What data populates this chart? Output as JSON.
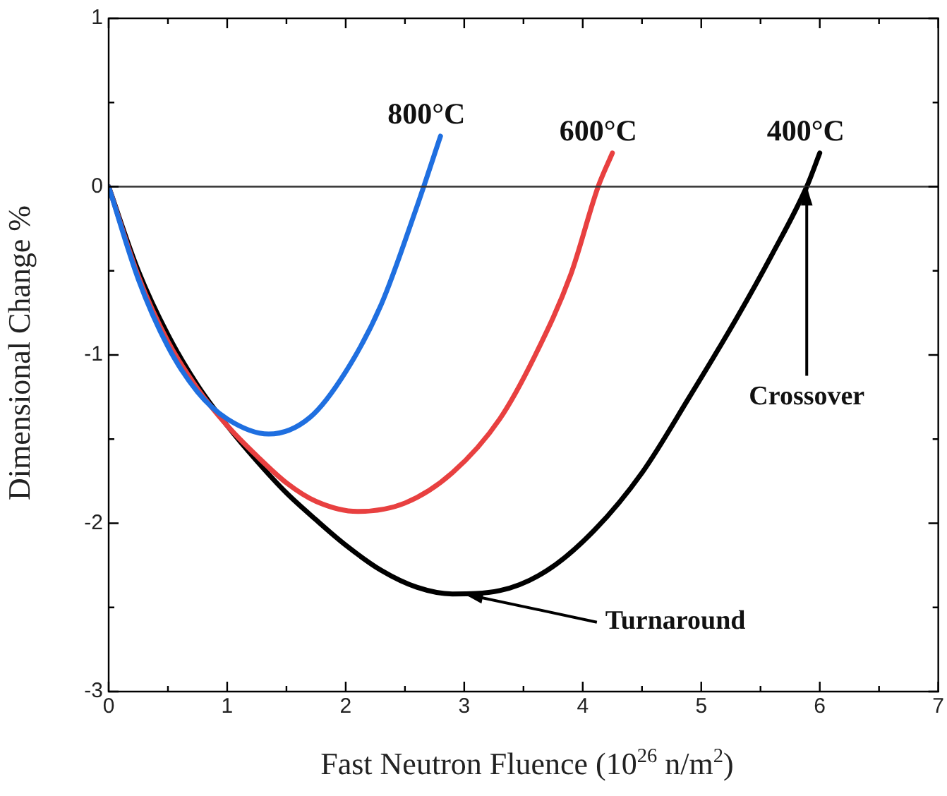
{
  "chart_data": {
    "type": "line",
    "xlabel": "Fast Neutron Fluence (10$^{26}$ n/m$^{2}$)",
    "ylabel": "Dimensional Change %",
    "xlim": [
      0,
      7
    ],
    "ylim": [
      -3,
      1
    ],
    "xticks": [
      0,
      {
        "value": 0.5,
        "label": null
      },
      1,
      {
        "value": 1.5,
        "label": null
      },
      2,
      {
        "value": 2.5,
        "label": null
      },
      3,
      {
        "value": 3.5,
        "label": null
      },
      4,
      {
        "value": 4.5,
        "label": null
      },
      5,
      {
        "value": 5.5,
        "label": null
      },
      6,
      {
        "value": 6.5,
        "label": null
      },
      7
    ],
    "yticks": [
      -3,
      {
        "value": -2.5,
        "label": null
      },
      -2,
      {
        "value": -1.5,
        "label": null
      },
      -1,
      {
        "value": -0.5,
        "label": null
      },
      0,
      {
        "value": 0.5,
        "label": null
      },
      1
    ],
    "grid": false,
    "legend": false,
    "marker": "none",
    "line_style": "solid",
    "ref_lines": [
      {
        "axis": "y",
        "value": 0,
        "color": "#333333"
      }
    ],
    "annotations": [
      {
        "text": "Crossover",
        "x": 5.89,
        "y": 0
      },
      {
        "text": "Turnaround",
        "x": 3.0,
        "y": -2.42
      }
    ],
    "series": [
      {
        "name": "800°C",
        "color": "#1f6fe0",
        "x": [
          0,
          0.25,
          0.5,
          0.75,
          1,
          1.35,
          1.7,
          2,
          2.3,
          2.6,
          2.8
        ],
        "values": [
          0,
          -0.55,
          -0.95,
          -1.22,
          -1.38,
          -1.47,
          -1.37,
          -1.1,
          -0.7,
          -0.12,
          0.3
        ]
      },
      {
        "name": "600°C",
        "color": "#e84040",
        "x": [
          0,
          0.25,
          0.5,
          0.75,
          1,
          1.25,
          1.5,
          1.75,
          2.1,
          2.5,
          2.9,
          3.3,
          3.6,
          3.9,
          4.13,
          4.25
        ],
        "values": [
          0,
          -0.53,
          -0.92,
          -1.2,
          -1.42,
          -1.6,
          -1.76,
          -1.87,
          -1.93,
          -1.88,
          -1.7,
          -1.38,
          -1.0,
          -0.52,
          0,
          0.2
        ]
      },
      {
        "name": "400°C",
        "color": "#000000",
        "x": [
          0,
          0.25,
          0.5,
          0.75,
          1,
          1.25,
          1.5,
          1.75,
          2,
          2.3,
          2.6,
          2.9,
          3.3,
          3.7,
          4.1,
          4.5,
          4.9,
          5.3,
          5.6,
          5.89,
          6.0
        ],
        "values": [
          0,
          -0.5,
          -0.88,
          -1.18,
          -1.42,
          -1.63,
          -1.82,
          -1.98,
          -2.13,
          -2.28,
          -2.38,
          -2.42,
          -2.4,
          -2.28,
          -2.04,
          -1.7,
          -1.25,
          -0.78,
          -0.4,
          0,
          0.2
        ]
      }
    ]
  }
}
